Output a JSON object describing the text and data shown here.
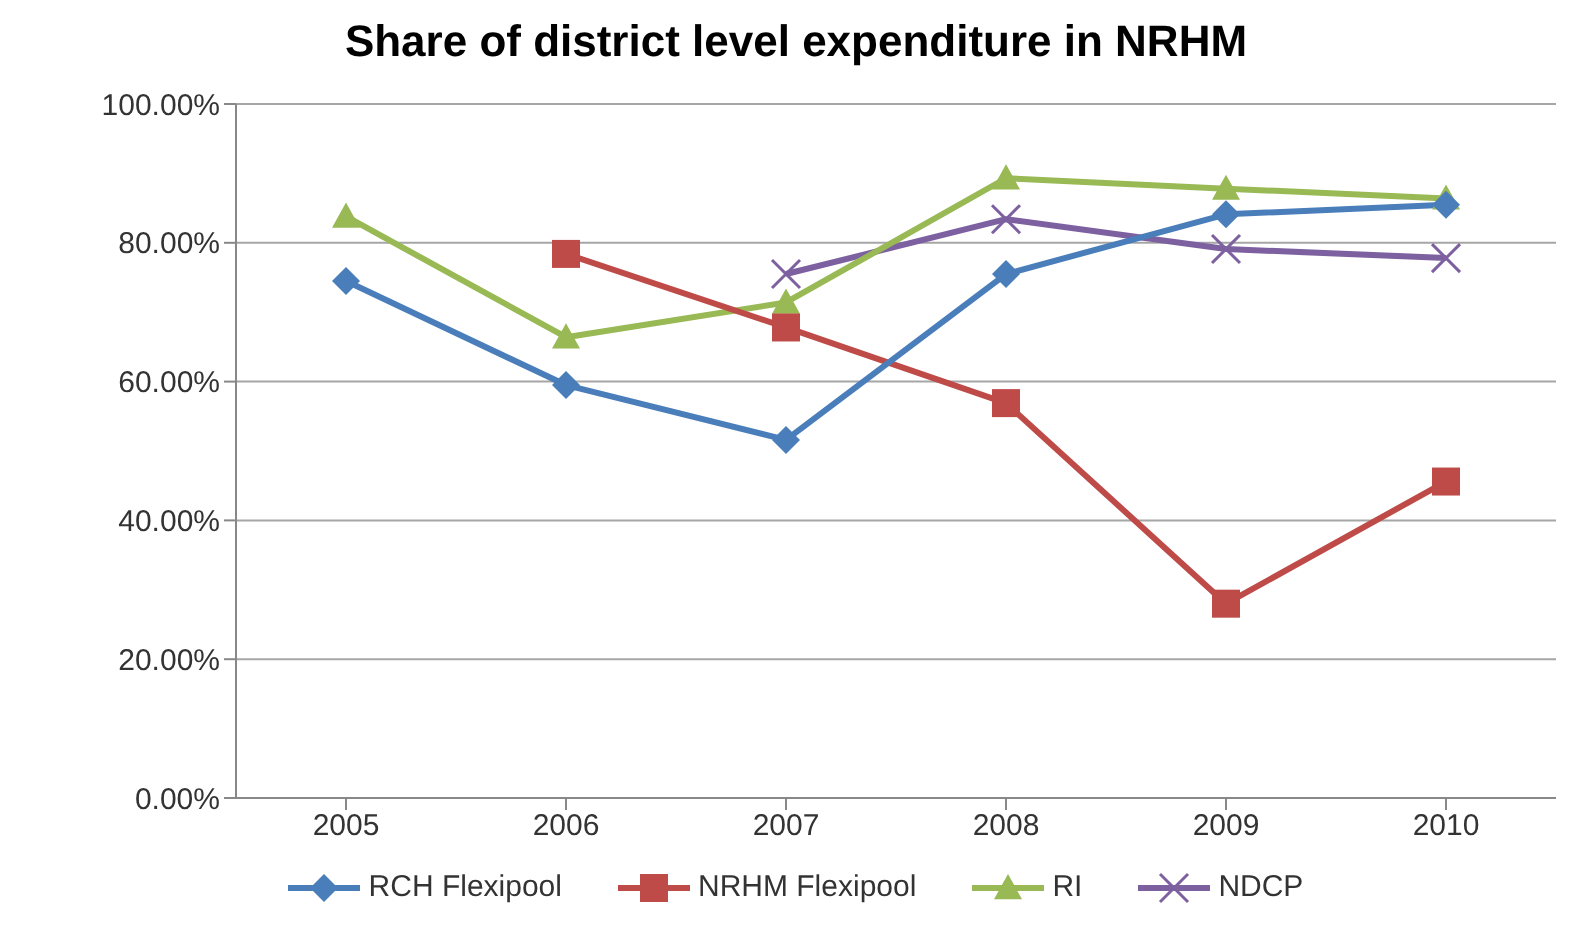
{
  "chart_data": {
    "type": "line",
    "title": "Share of district level expenditure in NRHM",
    "categories": [
      "2005",
      "2006",
      "2007",
      "2008",
      "2009",
      "2010"
    ],
    "series": [
      {
        "name": "RCH Flexipool",
        "color": "#4a7ebb",
        "marker": "diamond",
        "values": [
          74.5,
          59.5,
          51.6,
          75.5,
          84.1,
          85.5
        ]
      },
      {
        "name": "NRHM Flexipool",
        "color": "#be4b48",
        "marker": "square",
        "values": [
          null,
          78.4,
          67.8,
          56.9,
          28.0,
          45.6
        ]
      },
      {
        "name": "RI",
        "color": "#98b954",
        "marker": "triangle",
        "values": [
          83.8,
          66.4,
          71.4,
          89.3,
          87.8,
          86.4
        ]
      },
      {
        "name": "NDCP",
        "color": "#7d60a0",
        "marker": "cross",
        "values": [
          null,
          null,
          75.5,
          83.4,
          79.1,
          77.8
        ]
      }
    ],
    "ylim": [
      0,
      100
    ],
    "yticks": [
      {
        "value": 0,
        "label": "0.00%"
      },
      {
        "value": 20,
        "label": "20.00%"
      },
      {
        "value": 40,
        "label": "40.00%"
      },
      {
        "value": 60,
        "label": "60.00%"
      },
      {
        "value": 80,
        "label": "80.00%"
      },
      {
        "value": 100,
        "label": "100.00%"
      }
    ],
    "grid": "y",
    "legend": "bottom",
    "line_style": "solid"
  }
}
